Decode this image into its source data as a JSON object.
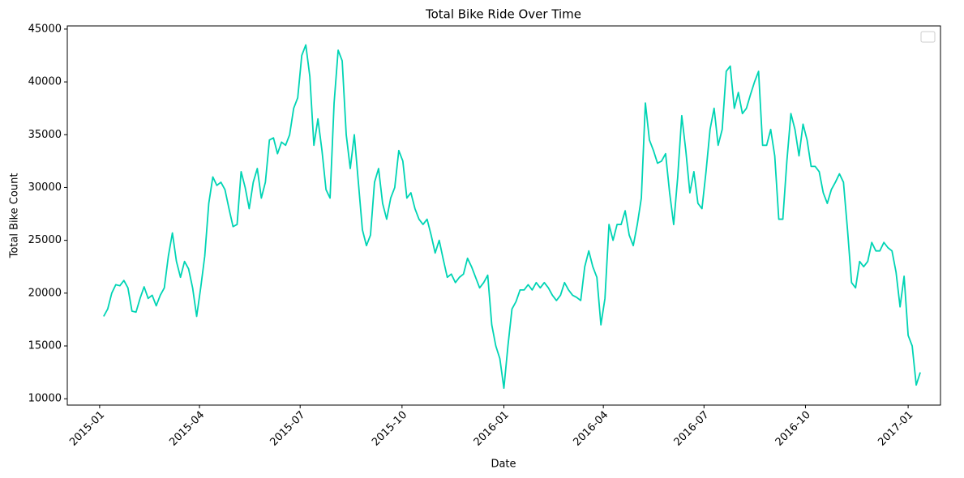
{
  "chart_data": {
    "type": "line",
    "title": "Total Bike Ride Over Time",
    "x_label": "Date",
    "y_label": "Total Bike Count",
    "xlim": [
      2014.92,
      2017.08
    ],
    "ylim": [
      9400,
      45300
    ],
    "xticks": [
      {
        "value": 2015,
        "label": "2015-01"
      },
      {
        "value": 2015.247,
        "label": "2015-04"
      },
      {
        "value": 2015.496,
        "label": "2015-07"
      },
      {
        "value": 2015.748,
        "label": "2015-10"
      },
      {
        "value": 2016,
        "label": "2016-01"
      },
      {
        "value": 2016.246,
        "label": "2016-04"
      },
      {
        "value": 2016.495,
        "label": "2016-07"
      },
      {
        "value": 2016.746,
        "label": "2016-10"
      },
      {
        "value": 2017,
        "label": "2017-01"
      }
    ],
    "yticks": [
      10000,
      15000,
      20000,
      25000,
      30000,
      35000,
      40000,
      45000
    ],
    "grid": false,
    "legend": "upper right",
    "x": [
      2015.01,
      2015.02,
      2015.03,
      2015.04,
      2015.05,
      2015.06,
      2015.07,
      2015.08,
      2015.09,
      2015.1,
      2015.11,
      2015.12,
      2015.13,
      2015.14,
      2015.15,
      2015.16,
      2015.17,
      2015.18,
      2015.19,
      2015.2,
      2015.21,
      2015.22,
      2015.23,
      2015.24,
      2015.25,
      2015.26,
      2015.27,
      2015.28,
      2015.29,
      2015.3,
      2015.31,
      2015.32,
      2015.33,
      2015.34,
      2015.35,
      2015.36,
      2015.37,
      2015.38,
      2015.39,
      2015.4,
      2015.41,
      2015.42,
      2015.43,
      2015.44,
      2015.45,
      2015.46,
      2015.47,
      2015.48,
      2015.49,
      2015.5,
      2015.51,
      2015.52,
      2015.53,
      2015.54,
      2015.55,
      2015.56,
      2015.57,
      2015.58,
      2015.59,
      2015.6,
      2015.61,
      2015.62,
      2015.63,
      2015.64,
      2015.65,
      2015.66,
      2015.67,
      2015.68,
      2015.69,
      2015.7,
      2015.71,
      2015.72,
      2015.73,
      2015.74,
      2015.75,
      2015.76,
      2015.77,
      2015.78,
      2015.79,
      2015.8,
      2015.81,
      2015.82,
      2015.83,
      2015.84,
      2015.85,
      2015.86,
      2015.87,
      2015.88,
      2015.89,
      2015.9,
      2015.91,
      2015.92,
      2015.93,
      2015.94,
      2015.95,
      2015.96,
      2015.97,
      2015.98,
      2015.99,
      2016,
      2016.01,
      2016.02,
      2016.03,
      2016.04,
      2016.05,
      2016.06,
      2016.07,
      2016.08,
      2016.09,
      2016.1,
      2016.11,
      2016.12,
      2016.13,
      2016.14,
      2016.15,
      2016.16,
      2016.17,
      2016.18,
      2016.19,
      2016.2,
      2016.21,
      2016.22,
      2016.23,
      2016.24,
      2016.25,
      2016.26,
      2016.27,
      2016.28,
      2016.29,
      2016.3,
      2016.31,
      2016.32,
      2016.33,
      2016.34,
      2016.35,
      2016.36,
      2016.37,
      2016.38,
      2016.39,
      2016.4,
      2016.41,
      2016.42,
      2016.43,
      2016.44,
      2016.45,
      2016.46,
      2016.47,
      2016.48,
      2016.49,
      2016.5,
      2016.51,
      2016.52,
      2016.53,
      2016.54,
      2016.55,
      2016.56,
      2016.57,
      2016.58,
      2016.59,
      2016.6,
      2016.61,
      2016.62,
      2016.63,
      2016.64,
      2016.65,
      2016.66,
      2016.67,
      2016.68,
      2016.69,
      2016.7,
      2016.71,
      2016.72,
      2016.73,
      2016.74,
      2016.75,
      2016.76,
      2016.77,
      2016.78,
      2016.79,
      2016.8,
      2016.81,
      2016.82,
      2016.83,
      2016.84,
      2016.85,
      2016.86,
      2016.87,
      2016.88,
      2016.89,
      2016.9,
      2016.91,
      2016.92,
      2016.93,
      2016.94,
      2016.95,
      2016.96,
      2016.97,
      2016.98,
      2016.99,
      2017,
      2017.01,
      2017.02,
      2017.03
    ],
    "series": [
      {
        "color": "#00d4b4",
        "values": [
          17800,
          18500,
          20000,
          20800,
          20700,
          21200,
          20500,
          18300,
          18200,
          19500,
          20600,
          19500,
          19800,
          18800,
          19800,
          20500,
          23500,
          25700,
          23000,
          21500,
          23000,
          22300,
          20500,
          17800,
          20500,
          23500,
          28500,
          31000,
          30200,
          30500,
          29800,
          28000,
          26300,
          26500,
          31500,
          30000,
          28000,
          30500,
          31800,
          29000,
          30500,
          34500,
          34700,
          33200,
          34300,
          34000,
          35000,
          37500,
          38500,
          42500,
          43500,
          40500,
          34000,
          36500,
          33500,
          29800,
          29000,
          38000,
          43000,
          42000,
          35000,
          31800,
          35000,
          30500,
          26000,
          24500,
          25500,
          30500,
          31800,
          28500,
          27000,
          29000,
          30000,
          33500,
          32500,
          29000,
          29500,
          28000,
          27000,
          26500,
          27000,
          25500,
          23800,
          25000,
          23200,
          21500,
          21800,
          21000,
          21500,
          21800,
          23300,
          22500,
          21500,
          20500,
          21000,
          21700,
          17000,
          15000,
          13800,
          11000,
          15000,
          18500,
          19200,
          20300,
          20300,
          20800,
          20300,
          21000,
          20500,
          21000,
          20500,
          19800,
          19300,
          19800,
          21000,
          20300,
          19800,
          19600,
          19300,
          22500,
          24000,
          22500,
          21500,
          17000,
          19500,
          26500,
          25000,
          26500,
          26500,
          27800,
          25500,
          24500,
          26500,
          29000,
          38000,
          34500,
          33500,
          32300,
          32500,
          33200,
          29500,
          26500,
          31000,
          36800,
          33500,
          29500,
          31500,
          28500,
          28000,
          31500,
          35500,
          37500,
          34000,
          35500,
          41000,
          41500,
          37500,
          39000,
          37000,
          37500,
          38800,
          40000,
          41000,
          34000,
          34000,
          35500,
          33000,
          27000,
          27000,
          32500,
          37000,
          35500,
          33000,
          36000,
          34500,
          32000,
          32000,
          31500,
          29500,
          28500,
          29800,
          30500,
          31300,
          30500,
          26000,
          21000,
          20500,
          23000,
          22500,
          23000,
          24800,
          24000,
          24000,
          24800,
          24300,
          24000,
          22000,
          18700,
          21600,
          16000,
          15000,
          11300,
          12500
        ]
      }
    ]
  }
}
